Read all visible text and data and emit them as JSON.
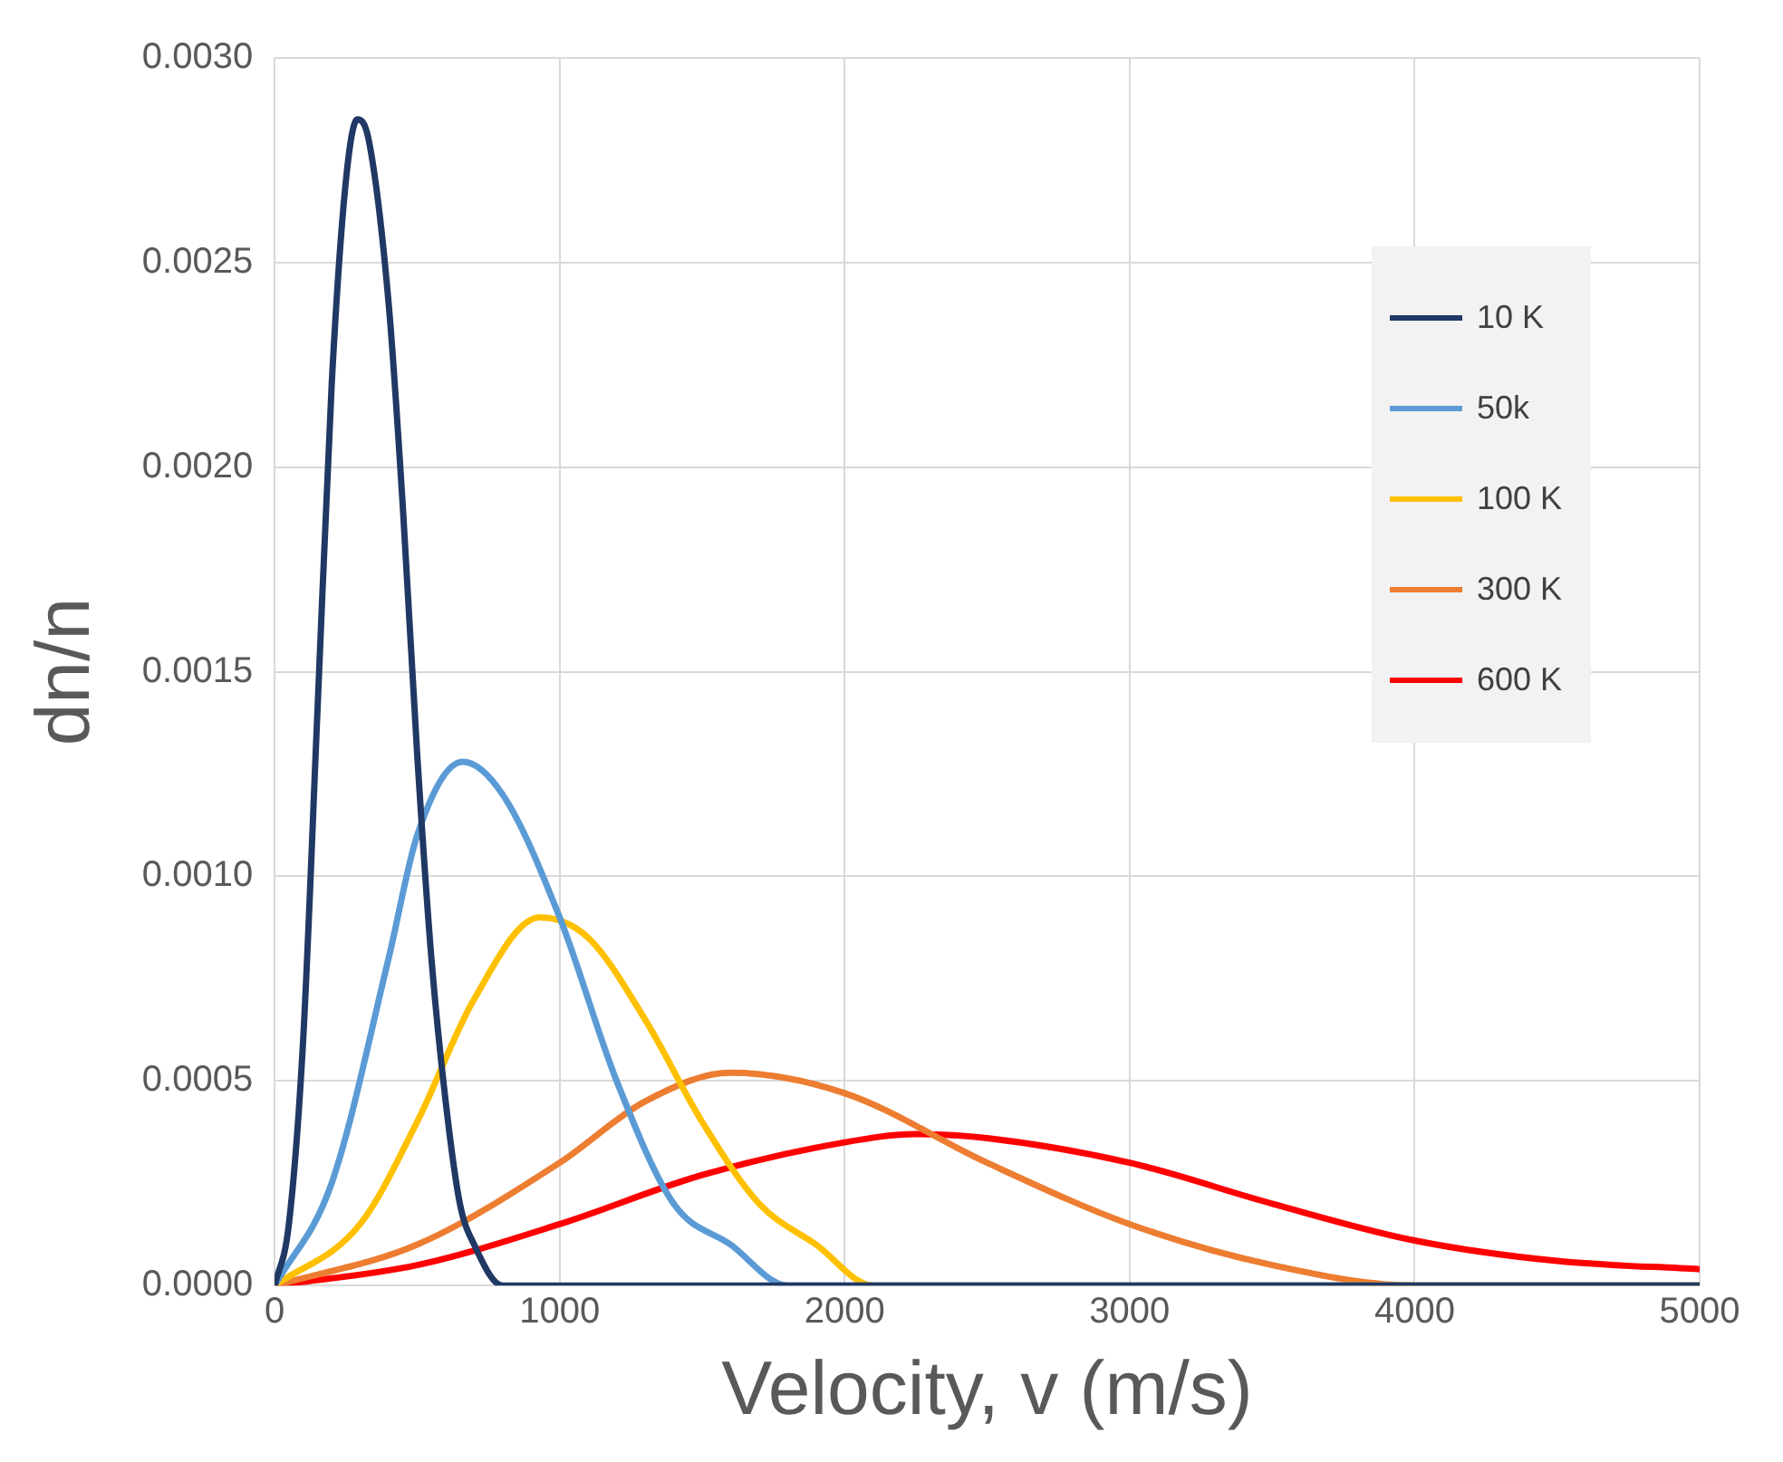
{
  "chart_data": {
    "type": "line",
    "xlabel": "Velocity, v (m/s)",
    "ylabel": "dn/n",
    "xlim": [
      0,
      5000
    ],
    "xticks": [
      0,
      1000,
      2000,
      3000,
      4000,
      5000
    ],
    "ylim": [
      0,
      0.003
    ],
    "yticks": [
      {
        "value": 0,
        "label": "0.0000"
      },
      0.0005,
      {
        "value": 0.001,
        "label": "0.0010"
      },
      0.0015,
      {
        "value": 0.002,
        "label": "0.0020"
      },
      0.0025,
      {
        "value": 0.003,
        "label": "0.0030"
      }
    ],
    "grid": true,
    "legend": "top right",
    "marker": "none",
    "line_style": "solid",
    "series": [
      {
        "name": "10 K",
        "color": "#203864",
        "x": [
          0,
          50,
          100,
          150,
          200,
          250,
          290,
          330,
          400,
          450,
          500,
          550,
          600,
          650,
          700,
          800,
          900,
          5000
        ],
        "values": [
          0,
          0.00015,
          0.0006,
          0.0014,
          0.0022,
          0.0027,
          0.00285,
          0.0028,
          0.0024,
          0.0019,
          0.0013,
          0.0008,
          0.00045,
          0.0002,
          0.0001,
          0,
          0,
          0
        ]
      },
      {
        "name": "50k",
        "color": "#5b9bd5",
        "x": [
          0,
          200,
          400,
          500,
          660,
          800,
          1000,
          1200,
          1400,
          1600,
          1800,
          2000,
          5000
        ],
        "values": [
          0,
          0.00025,
          0.0008,
          0.0011,
          0.00128,
          0.0012,
          0.0009,
          0.0005,
          0.0002,
          0.0001,
          0,
          0,
          0
        ]
      },
      {
        "name": "100 K",
        "color": "#ffc000",
        "x": [
          0,
          300,
          500,
          700,
          930,
          1100,
          1300,
          1500,
          1700,
          1900,
          2100,
          2500,
          5000
        ],
        "values": [
          0,
          0.00015,
          0.0004,
          0.0007,
          0.0009,
          0.00085,
          0.00065,
          0.0004,
          0.0002,
          0.0001,
          0,
          0,
          0
        ]
      },
      {
        "name": "300 K",
        "color": "#ed7d31",
        "x": [
          0,
          500,
          1000,
          1300,
          1600,
          2000,
          2500,
          3000,
          3500,
          4000,
          5000
        ],
        "values": [
          0,
          0.0001,
          0.0003,
          0.00045,
          0.00052,
          0.00047,
          0.0003,
          0.00015,
          5e-05,
          0,
          0
        ]
      },
      {
        "name": "600 K",
        "color": "#ff0000",
        "x": [
          0,
          500,
          1000,
          1500,
          2000,
          2250,
          2500,
          3000,
          3500,
          4000,
          4500,
          5000
        ],
        "values": [
          0,
          5e-05,
          0.00015,
          0.00027,
          0.00035,
          0.00037,
          0.00036,
          0.0003,
          0.0002,
          0.00011,
          6e-05,
          4e-05
        ]
      }
    ]
  }
}
